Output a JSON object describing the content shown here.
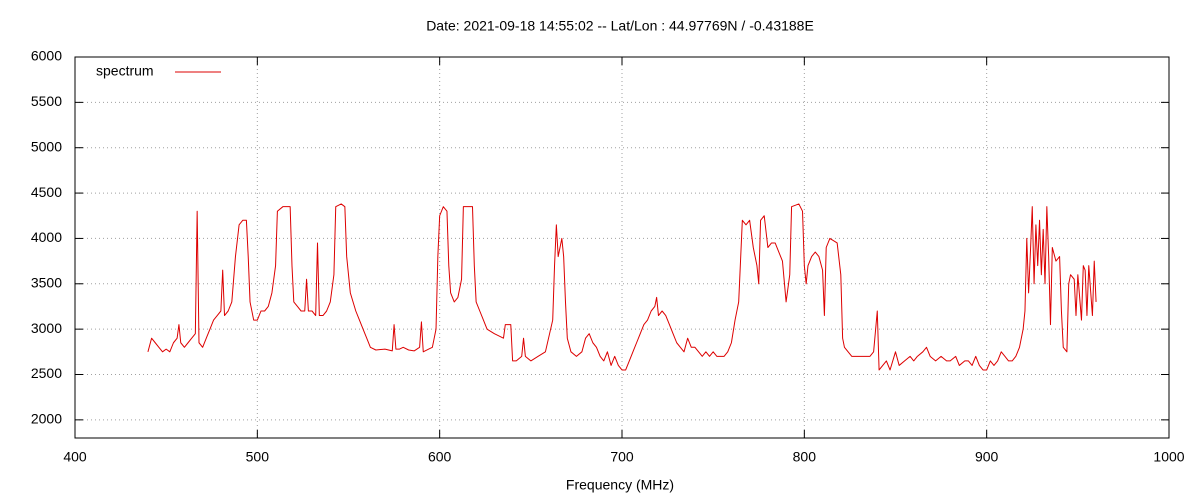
{
  "chart_data": {
    "type": "line",
    "title": "Date: 2021-09-18 14:55:02  --  Lat/Lon : 44.97769N / -0.43188E",
    "x_label": "Frequency (MHz)",
    "xlim": [
      400,
      1000
    ],
    "xticks": [
      400,
      500,
      600,
      700,
      800,
      900,
      1000
    ],
    "ylim": [
      1800,
      6000
    ],
    "yticks": [
      2000,
      2500,
      3000,
      3500,
      4000,
      4500,
      5000,
      5500,
      6000
    ],
    "grid": true,
    "legend": "top-left",
    "x": [
      440,
      442,
      444,
      446,
      448,
      450,
      452,
      454,
      456,
      457,
      458,
      460,
      462,
      464,
      466,
      467,
      468,
      470,
      472,
      474,
      476,
      478,
      480,
      481,
      482,
      484,
      486,
      488,
      490,
      492,
      494,
      495,
      496,
      498,
      500,
      502,
      504,
      506,
      508,
      510,
      511,
      514,
      518,
      519,
      520,
      522,
      524,
      526,
      527,
      528,
      530,
      532,
      533,
      534,
      536,
      538,
      540,
      542,
      543,
      546,
      548,
      549,
      551,
      554,
      556,
      558,
      560,
      562,
      565,
      570,
      574,
      575,
      576,
      578,
      580,
      583,
      586,
      589,
      590,
      591,
      594,
      596,
      598,
      599,
      600,
      602,
      604,
      605,
      606,
      608,
      610,
      612,
      613,
      618,
      619,
      620,
      622,
      624,
      626,
      630,
      635,
      636,
      639,
      640,
      642,
      645,
      646,
      647,
      650,
      654,
      658,
      662,
      663,
      664,
      665,
      667,
      668,
      669,
      670,
      672,
      675,
      678,
      680,
      682,
      684,
      686,
      688,
      690,
      692,
      694,
      696,
      698,
      700,
      702,
      704,
      706,
      708,
      710,
      712,
      714,
      716,
      718,
      719,
      720,
      722,
      724,
      726,
      728,
      730,
      732,
      734,
      736,
      738,
      740,
      742,
      744,
      746,
      748,
      750,
      752,
      754,
      756,
      758,
      760,
      762,
      764,
      766,
      768,
      770,
      772,
      774,
      775,
      776,
      778,
      780,
      782,
      784,
      786,
      788,
      790,
      792,
      793,
      797,
      799,
      800,
      801,
      802,
      804,
      806,
      808,
      810,
      811,
      812,
      814,
      818,
      820,
      821,
      822,
      824,
      826,
      828,
      832,
      836,
      838,
      840,
      841,
      843,
      845,
      847,
      850,
      852,
      855,
      858,
      860,
      862,
      865,
      867,
      869,
      872,
      875,
      878,
      880,
      883,
      885,
      888,
      890,
      892,
      894,
      896,
      898,
      900,
      902,
      904,
      906,
      908,
      910,
      912,
      914,
      916,
      918,
      920,
      921,
      922,
      923,
      924,
      925,
      926,
      927,
      928,
      929,
      930,
      931,
      932,
      933,
      934,
      935,
      936,
      938,
      940,
      941,
      942,
      944,
      945,
      946,
      948,
      949,
      950,
      952,
      953,
      954,
      955,
      956,
      958,
      959,
      960
    ],
    "series": [
      {
        "name": "spectrum",
        "color": "#dd0000",
        "values": [
          2750,
          2900,
          2850,
          2800,
          2750,
          2780,
          2750,
          2850,
          2900,
          3050,
          2850,
          2800,
          2850,
          2900,
          2950,
          4300,
          2850,
          2800,
          2900,
          3000,
          3100,
          3150,
          3200,
          3650,
          3150,
          3200,
          3300,
          3800,
          4150,
          4200,
          4200,
          3800,
          3300,
          3100,
          3100,
          3200,
          3200,
          3250,
          3400,
          3700,
          4300,
          4350,
          4350,
          3700,
          3300,
          3250,
          3200,
          3200,
          3550,
          3200,
          3200,
          3150,
          3950,
          3150,
          3150,
          3200,
          3300,
          3600,
          4350,
          4380,
          4350,
          3800,
          3400,
          3200,
          3100,
          3000,
          2900,
          2800,
          2770,
          2780,
          2760,
          3050,
          2780,
          2780,
          2800,
          2770,
          2760,
          2800,
          3080,
          2750,
          2780,
          2800,
          3000,
          3800,
          4250,
          4350,
          4300,
          3700,
          3400,
          3300,
          3350,
          3550,
          4350,
          4350,
          3700,
          3300,
          3200,
          3100,
          3000,
          2950,
          2900,
          3050,
          3050,
          2650,
          2650,
          2700,
          2900,
          2700,
          2650,
          2700,
          2750,
          3100,
          3700,
          4150,
          3800,
          4000,
          3800,
          3300,
          2900,
          2750,
          2700,
          2750,
          2900,
          2950,
          2850,
          2800,
          2700,
          2650,
          2750,
          2600,
          2700,
          2600,
          2550,
          2550,
          2650,
          2750,
          2850,
          2950,
          3050,
          3100,
          3200,
          3250,
          3350,
          3150,
          3200,
          3150,
          3050,
          2950,
          2850,
          2800,
          2750,
          2900,
          2800,
          2800,
          2750,
          2700,
          2750,
          2700,
          2750,
          2700,
          2700,
          2700,
          2750,
          2850,
          3100,
          3300,
          4200,
          4150,
          4200,
          3900,
          3700,
          3500,
          4200,
          4250,
          3900,
          3950,
          3950,
          3850,
          3750,
          3300,
          3600,
          4350,
          4380,
          4300,
          3700,
          3500,
          3700,
          3800,
          3850,
          3800,
          3650,
          3150,
          3900,
          4000,
          3950,
          3600,
          2900,
          2800,
          2750,
          2700,
          2700,
          2700,
          2700,
          2750,
          3200,
          2550,
          2600,
          2650,
          2550,
          2750,
          2600,
          2650,
          2700,
          2650,
          2700,
          2750,
          2800,
          2700,
          2650,
          2700,
          2650,
          2650,
          2700,
          2600,
          2650,
          2650,
          2600,
          2700,
          2600,
          2550,
          2550,
          2650,
          2600,
          2650,
          2750,
          2700,
          2650,
          2650,
          2700,
          2800,
          3000,
          3200,
          4000,
          3400,
          3850,
          4350,
          3500,
          4150,
          3700,
          4200,
          3600,
          4100,
          3500,
          4350,
          3800,
          3050,
          3900,
          3750,
          3800,
          3200,
          2800,
          2750,
          3500,
          3600,
          3550,
          3150,
          3600,
          3100,
          3700,
          3650,
          3150,
          3700,
          3150,
          3750,
          3300
        ]
      }
    ]
  }
}
